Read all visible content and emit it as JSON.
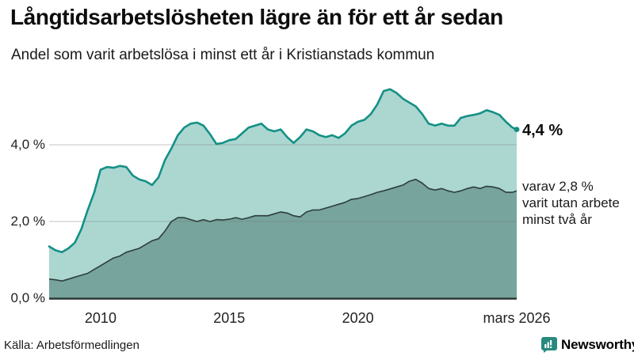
{
  "header": {
    "title": "Långtidsarbetslösheten lägre än för ett år sedan",
    "subtitle": "Andel som varit arbetslösa i minst ett år i Kristianstads kommun"
  },
  "chart_data": {
    "type": "area",
    "title": "Långtidsarbetslösheten lägre än för ett år sedan",
    "subtitle": "Andel som varit arbetslösa i minst ett år i Kristianstads kommun",
    "unit": "%",
    "grid": "horizontal",
    "x_axis": {
      "range": [
        2008.0,
        2026.17
      ],
      "ticks": [
        {
          "label": "2010",
          "x": 2010.0
        },
        {
          "label": "2015",
          "x": 2015.0
        },
        {
          "label": "2020",
          "x": 2020.0
        },
        {
          "label": "mars 2026",
          "x": 2026.17
        }
      ]
    },
    "y_axis": {
      "range": [
        0,
        5.6
      ],
      "ticks": [
        {
          "label": "4,0 %",
          "value": 4.0
        },
        {
          "label": "2,0 %",
          "value": 2.0
        },
        {
          "label": "0,0 %",
          "value": 0.0
        }
      ]
    },
    "x": [
      2008.0,
      2008.25,
      2008.5,
      2008.75,
      2009.0,
      2009.25,
      2009.5,
      2009.75,
      2010.0,
      2010.25,
      2010.5,
      2010.75,
      2011.0,
      2011.25,
      2011.5,
      2011.75,
      2012.0,
      2012.25,
      2012.5,
      2012.75,
      2013.0,
      2013.25,
      2013.5,
      2013.75,
      2014.0,
      2014.25,
      2014.5,
      2014.75,
      2015.0,
      2015.25,
      2015.5,
      2015.75,
      2016.0,
      2016.25,
      2016.5,
      2016.75,
      2017.0,
      2017.25,
      2017.5,
      2017.75,
      2018.0,
      2018.25,
      2018.5,
      2018.75,
      2019.0,
      2019.25,
      2019.5,
      2019.75,
      2020.0,
      2020.25,
      2020.5,
      2020.75,
      2021.0,
      2021.25,
      2021.5,
      2021.75,
      2022.0,
      2022.25,
      2022.5,
      2022.75,
      2023.0,
      2023.25,
      2023.5,
      2023.75,
      2024.0,
      2024.25,
      2024.5,
      2024.75,
      2025.0,
      2025.25,
      2025.5,
      2025.75,
      2026.0,
      2026.17
    ],
    "series": [
      {
        "name": "Arbetslösa minst ett år",
        "line_color": "#149086",
        "fill_color": "#abd7d0",
        "latest_value": 4.4,
        "values": [
          1.35,
          1.25,
          1.2,
          1.3,
          1.45,
          1.8,
          2.3,
          2.75,
          3.35,
          3.42,
          3.4,
          3.45,
          3.42,
          3.2,
          3.1,
          3.05,
          2.95,
          3.15,
          3.6,
          3.9,
          4.25,
          4.45,
          4.55,
          4.58,
          4.5,
          4.28,
          4.02,
          4.05,
          4.12,
          4.15,
          4.3,
          4.45,
          4.5,
          4.55,
          4.4,
          4.35,
          4.4,
          4.2,
          4.05,
          4.2,
          4.4,
          4.35,
          4.25,
          4.2,
          4.25,
          4.18,
          4.3,
          4.5,
          4.6,
          4.65,
          4.8,
          5.05,
          5.4,
          5.45,
          5.35,
          5.2,
          5.1,
          5.0,
          4.8,
          4.55,
          4.5,
          4.55,
          4.5,
          4.5,
          4.7,
          4.75,
          4.78,
          4.82,
          4.9,
          4.85,
          4.78,
          4.6,
          4.45,
          4.4
        ]
      },
      {
        "name": "Varav utan arbete minst två år",
        "line_color": "#2e3f3c",
        "fill_color": "#77a49d",
        "latest_value": 2.8,
        "values": [
          0.5,
          0.48,
          0.45,
          0.5,
          0.55,
          0.6,
          0.65,
          0.75,
          0.85,
          0.95,
          1.05,
          1.1,
          1.2,
          1.25,
          1.3,
          1.4,
          1.5,
          1.55,
          1.75,
          2.0,
          2.1,
          2.1,
          2.05,
          2.0,
          2.05,
          2.0,
          2.05,
          2.04,
          2.06,
          2.1,
          2.06,
          2.1,
          2.15,
          2.15,
          2.15,
          2.2,
          2.25,
          2.22,
          2.15,
          2.12,
          2.25,
          2.3,
          2.3,
          2.35,
          2.4,
          2.45,
          2.5,
          2.58,
          2.6,
          2.65,
          2.7,
          2.76,
          2.8,
          2.85,
          2.9,
          2.95,
          3.05,
          3.1,
          3.0,
          2.86,
          2.82,
          2.86,
          2.8,
          2.76,
          2.8,
          2.86,
          2.9,
          2.86,
          2.92,
          2.9,
          2.86,
          2.76,
          2.76,
          2.8
        ]
      }
    ],
    "annotations": {
      "latest_total": "4,4 %",
      "secondary": "varav 2,8 %\nvarit utan arbete\nminst två år"
    }
  },
  "footer": {
    "source": "Källa: Arbetsförmedlingen",
    "brand": "Newsworthy",
    "brand_color": "#27897f"
  },
  "colors": {
    "grid": "#d9d9d9",
    "baseline": "#2c3836"
  }
}
